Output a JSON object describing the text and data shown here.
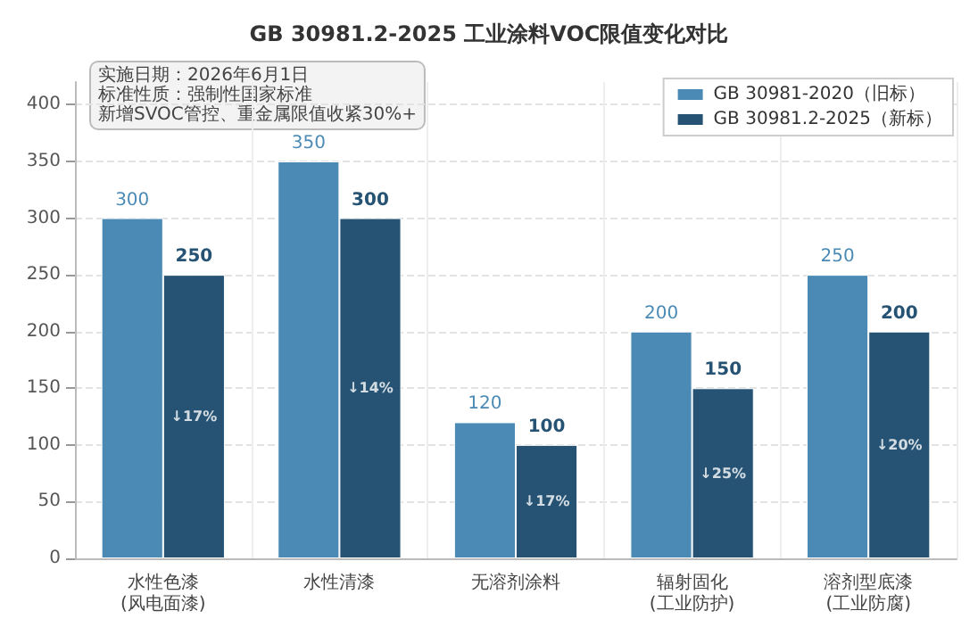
{
  "chart_data": {
    "type": "bar",
    "title": "GB 30981.2-2025 工业涂料VOC限值变化对比",
    "categories": [
      "水性色漆\n(风电面漆)",
      "水性清漆",
      "无溶剂涂料",
      "辐射固化\n(工业防护)",
      "溶剂型底漆\n(工业防腐)"
    ],
    "series": [
      {
        "name": "GB 30981-2020（旧标）",
        "color": "#4a8ab5",
        "values": [
          300,
          350,
          120,
          200,
          250
        ]
      },
      {
        "name": "GB 30981.2-2025（新标）",
        "color": "#265373",
        "values": [
          250,
          300,
          100,
          150,
          200
        ]
      }
    ],
    "ylim": [
      0,
      420
    ],
    "yticks": [
      0,
      50,
      100,
      150,
      200,
      250,
      300,
      350,
      400
    ],
    "grid": true,
    "legend": "top right",
    "data_labels": true,
    "annotations": [
      "实施日期：2026年6月1日",
      "标准性质：强制性国家标准",
      "新增SVOC管控、重金属限值收紧30%+",
      {
        "text": "↓17%",
        "x": "水性色漆\n(风电面漆)",
        "y": 125
      },
      {
        "text": "↓14%",
        "x": "水性清漆",
        "y": 150
      },
      {
        "text": "↓17%",
        "x": "无溶剂涂料",
        "y": 50
      },
      {
        "text": "↓25%",
        "x": "辐射固化\n(工业防护)",
        "y": 75
      },
      {
        "text": "↓20%",
        "x": "溶剂型底漆\n(工业防腐)",
        "y": 100
      }
    ]
  }
}
